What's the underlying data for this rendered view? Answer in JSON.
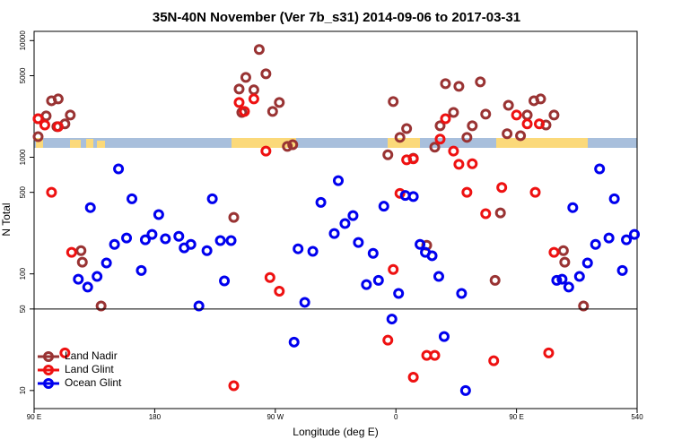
{
  "chart_data": {
    "type": "scatter",
    "title": "35N-40N November (Ver 7b_s31)   2014-09-06 to 2017-03-31",
    "xlabel": "Longitude (deg E)",
    "ylabel": "N Total",
    "xlim": [
      90,
      540
    ],
    "ylim": [
      7,
      12000
    ],
    "log_y": true,
    "xticks": [
      {
        "value": 90,
        "label": "90 E"
      },
      180,
      {
        "value": 270,
        "label": "90 W"
      },
      {
        "value": 360,
        "label": "0"
      },
      {
        "value": 450,
        "label": "90 E"
      },
      540
    ],
    "yticks": [
      10,
      50,
      100,
      500,
      1000,
      5000,
      10000
    ],
    "hlines": [
      50
    ],
    "legend": "bottom-left",
    "series": [
      {
        "name": "Land Nadir",
        "color": "#993333",
        "x": [
          93,
          93,
          99,
          103,
          108,
          107,
          113,
          117,
          125,
          126,
          140,
          239,
          243,
          248,
          245,
          254,
          258,
          263,
          268,
          273,
          279,
          283,
          354,
          358,
          363,
          368,
          373,
          383,
          389,
          393,
          397,
          403,
          407,
          413,
          417,
          423,
          427,
          434,
          438,
          443,
          444,
          453,
          458,
          463,
          468,
          472,
          478,
          485,
          486,
          500
        ],
        "values": [
          2140,
          1500,
          2260,
          3050,
          3160,
          1830,
          1930,
          2300,
          158,
          126,
          53,
          305,
          3840,
          4840,
          2420,
          3780,
          8380,
          5190,
          2470,
          2950,
          1240,
          1280,
          1050,
          3000,
          1480,
          1760,
          980,
          176,
          1220,
          1860,
          4270,
          2420,
          4050,
          1480,
          1860,
          4430,
          2340,
          88,
          333,
          1590,
          2790,
          1530,
          2300,
          3050,
          3160,
          1890,
          2300,
          158,
          126,
          53
        ]
      },
      {
        "name": "Land Glint",
        "color": "#ee1111",
        "x": [
          93,
          98,
          103,
          108,
          118,
          113,
          239,
          243,
          247,
          254,
          263,
          266,
          273,
          354,
          358,
          363,
          368,
          373,
          373,
          383,
          389,
          393,
          397,
          403,
          407,
          413,
          417,
          427,
          433,
          439,
          450,
          458,
          464,
          467,
          474,
          478
        ],
        "values": [
          2140,
          1890,
          500,
          1830,
          153,
          21,
          11,
          2950,
          2470,
          3160,
          1130,
          93,
          71,
          27,
          109,
          490,
          950,
          970,
          13,
          20,
          20,
          1430,
          2140,
          1130,
          870,
          500,
          880,
          328,
          18,
          550,
          2300,
          1930,
          500,
          1930,
          21,
          153
        ]
      },
      {
        "name": "Ocean Glint",
        "color": "#0000ee",
        "x": [
          123,
          130,
          132,
          137,
          144,
          150,
          153,
          159,
          163,
          170,
          173,
          178,
          183,
          188,
          198,
          202,
          207,
          213,
          219,
          223,
          229,
          232,
          237,
          284,
          287,
          292,
          298,
          304,
          314,
          317,
          322,
          328,
          332,
          338,
          343,
          347,
          351,
          357,
          362,
          367,
          373,
          378,
          382,
          387,
          392,
          396,
          409,
          412,
          480,
          484,
          489,
          492,
          497,
          503,
          509,
          512,
          519,
          523,
          529,
          532,
          538
        ],
        "values": [
          90,
          77,
          370,
          95,
          124,
          179,
          795,
          203,
          440,
          107,
          196,
          218,
          322,
          200,
          210,
          167,
          179,
          53,
          158,
          440,
          193,
          87,
          193,
          26,
          164,
          57,
          156,
          410,
          222,
          630,
          270,
          316,
          186,
          81,
          150,
          88,
          380,
          41,
          68,
          470,
          460,
          179,
          153,
          143,
          95,
          29,
          68,
          10,
          88,
          90,
          77,
          370,
          95,
          124,
          179,
          795,
          203,
          440,
          107,
          196,
          218
        ]
      }
    ]
  }
}
